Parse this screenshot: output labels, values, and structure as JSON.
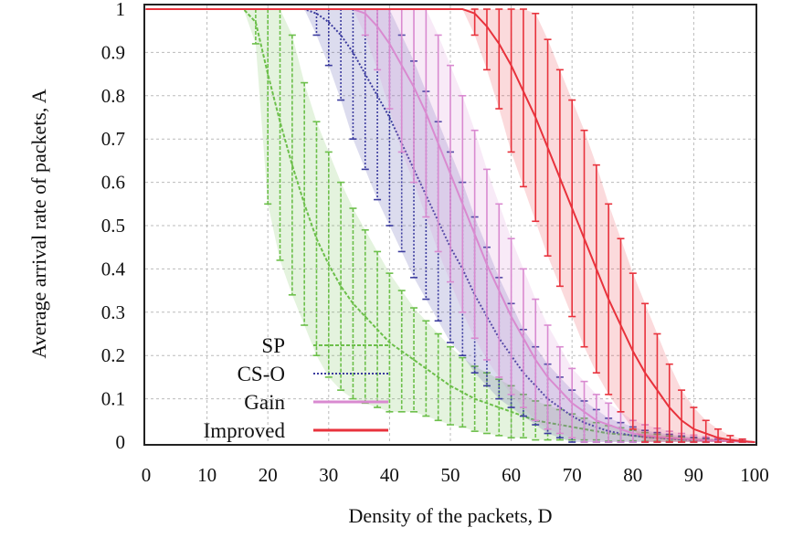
{
  "chart_data": {
    "type": "line",
    "title": "",
    "xlabel": "Density of the packets, D",
    "ylabel": "Average arrival rate of packets, A",
    "xlim": [
      0,
      100
    ],
    "ylim": [
      0,
      1
    ],
    "xticks": [
      "0",
      "10",
      "20",
      "30",
      "40",
      "50",
      "60",
      "70",
      "80",
      "90",
      "100"
    ],
    "yticks": [
      "0",
      "0.1",
      "0.2",
      "0.3",
      "0.4",
      "0.5",
      "0.6",
      "0.7",
      "0.8",
      "0.9",
      "1"
    ],
    "grid": true,
    "legend_position": "bottom-left",
    "error_bars": true,
    "x": [
      0,
      2,
      4,
      6,
      8,
      10,
      12,
      14,
      16,
      18,
      20,
      22,
      24,
      26,
      28,
      30,
      32,
      34,
      36,
      38,
      40,
      42,
      44,
      46,
      48,
      50,
      52,
      54,
      56,
      58,
      60,
      62,
      64,
      66,
      68,
      70,
      72,
      74,
      76,
      78,
      80,
      82,
      84,
      86,
      88,
      90,
      92,
      94,
      96,
      98,
      100
    ],
    "series": [
      {
        "name": "SP",
        "color": "#6cbf4a",
        "dash": "4,2",
        "values": [
          1,
          1,
          1,
          1,
          1,
          1,
          1,
          1,
          1,
          0.97,
          0.85,
          0.74,
          0.64,
          0.55,
          0.47,
          0.41,
          0.36,
          0.32,
          0.29,
          0.26,
          0.23,
          0.21,
          0.19,
          0.17,
          0.15,
          0.13,
          0.115,
          0.1,
          0.09,
          0.08,
          0.07,
          0.06,
          0.05,
          0.045,
          0.04,
          0.035,
          0.03,
          0.025,
          0.02,
          0.018,
          0.015,
          0.012,
          0.01,
          0.008,
          0.006,
          0.005,
          0.004,
          0.003,
          0.002,
          0.001,
          0
        ],
        "error": [
          0,
          0,
          0,
          0,
          0,
          0,
          0,
          0,
          0,
          0.05,
          0.3,
          0.32,
          0.3,
          0.28,
          0.27,
          0.26,
          0.24,
          0.22,
          0.2,
          0.18,
          0.16,
          0.14,
          0.12,
          0.11,
          0.1,
          0.09,
          0.08,
          0.075,
          0.07,
          0.065,
          0.06,
          0.05,
          0.045,
          0.04,
          0.035,
          0.03,
          0.025,
          0.02,
          0.018,
          0.015,
          0.012,
          0.01,
          0.008,
          0.006,
          0.005,
          0.004,
          0.003,
          0.002,
          0.001,
          0,
          0
        ]
      },
      {
        "name": "CS-O",
        "color": "#3b3b9e",
        "dash": "2,2",
        "values": [
          1,
          1,
          1,
          1,
          1,
          1,
          1,
          1,
          1,
          1,
          1,
          1,
          1,
          1,
          0.99,
          0.97,
          0.94,
          0.9,
          0.85,
          0.8,
          0.75,
          0.69,
          0.63,
          0.57,
          0.51,
          0.45,
          0.4,
          0.34,
          0.29,
          0.24,
          0.2,
          0.16,
          0.13,
          0.1,
          0.08,
          0.06,
          0.045,
          0.035,
          0.025,
          0.02,
          0.015,
          0.012,
          0.01,
          0.008,
          0.006,
          0.005,
          0.004,
          0.003,
          0.002,
          0.001,
          0
        ],
        "error": [
          0,
          0,
          0,
          0,
          0,
          0,
          0,
          0,
          0,
          0,
          0,
          0,
          0,
          0,
          0.05,
          0.1,
          0.15,
          0.2,
          0.22,
          0.24,
          0.25,
          0.25,
          0.25,
          0.24,
          0.23,
          0.22,
          0.2,
          0.18,
          0.16,
          0.14,
          0.12,
          0.1,
          0.09,
          0.08,
          0.07,
          0.06,
          0.05,
          0.04,
          0.03,
          0.025,
          0.02,
          0.015,
          0.012,
          0.01,
          0.008,
          0.006,
          0.005,
          0.004,
          0.003,
          0.002,
          0
        ]
      },
      {
        "name": "Gain",
        "color": "#d98ad0",
        "dash": "",
        "values": [
          1,
          1,
          1,
          1,
          1,
          1,
          1,
          1,
          1,
          1,
          1,
          1,
          1,
          1,
          1,
          1,
          1,
          1,
          0.99,
          0.96,
          0.92,
          0.87,
          0.82,
          0.76,
          0.69,
          0.62,
          0.55,
          0.48,
          0.41,
          0.35,
          0.29,
          0.24,
          0.19,
          0.15,
          0.12,
          0.09,
          0.07,
          0.05,
          0.04,
          0.03,
          0.02,
          0.015,
          0.012,
          0.01,
          0.008,
          0.006,
          0.004,
          0.003,
          0.002,
          0.001,
          0
        ],
        "error": [
          0,
          0,
          0,
          0,
          0,
          0,
          0,
          0,
          0,
          0,
          0,
          0,
          0,
          0,
          0,
          0,
          0,
          0,
          0.05,
          0.1,
          0.15,
          0.2,
          0.22,
          0.24,
          0.25,
          0.25,
          0.25,
          0.24,
          0.22,
          0.2,
          0.18,
          0.16,
          0.14,
          0.12,
          0.1,
          0.08,
          0.07,
          0.06,
          0.05,
          0.04,
          0.03,
          0.025,
          0.02,
          0.015,
          0.012,
          0.01,
          0.008,
          0.006,
          0.004,
          0.002,
          0
        ]
      },
      {
        "name": "Improved",
        "color": "#e8323c",
        "dash": "",
        "values": [
          1,
          1,
          1,
          1,
          1,
          1,
          1,
          1,
          1,
          1,
          1,
          1,
          1,
          1,
          1,
          1,
          1,
          1,
          1,
          1,
          1,
          1,
          1,
          1,
          1,
          1,
          1,
          0.99,
          0.96,
          0.92,
          0.87,
          0.81,
          0.75,
          0.68,
          0.61,
          0.54,
          0.47,
          0.4,
          0.33,
          0.27,
          0.21,
          0.16,
          0.12,
          0.08,
          0.05,
          0.03,
          0.02,
          0.01,
          0.005,
          0.002,
          0
        ],
        "error": [
          0,
          0,
          0,
          0,
          0,
          0,
          0,
          0,
          0,
          0,
          0,
          0,
          0,
          0,
          0,
          0,
          0,
          0,
          0,
          0,
          0,
          0,
          0,
          0,
          0,
          0,
          0,
          0.05,
          0.1,
          0.15,
          0.2,
          0.22,
          0.24,
          0.25,
          0.25,
          0.25,
          0.25,
          0.24,
          0.22,
          0.2,
          0.18,
          0.16,
          0.13,
          0.1,
          0.07,
          0.05,
          0.03,
          0.02,
          0.01,
          0.005,
          0
        ]
      }
    ]
  }
}
